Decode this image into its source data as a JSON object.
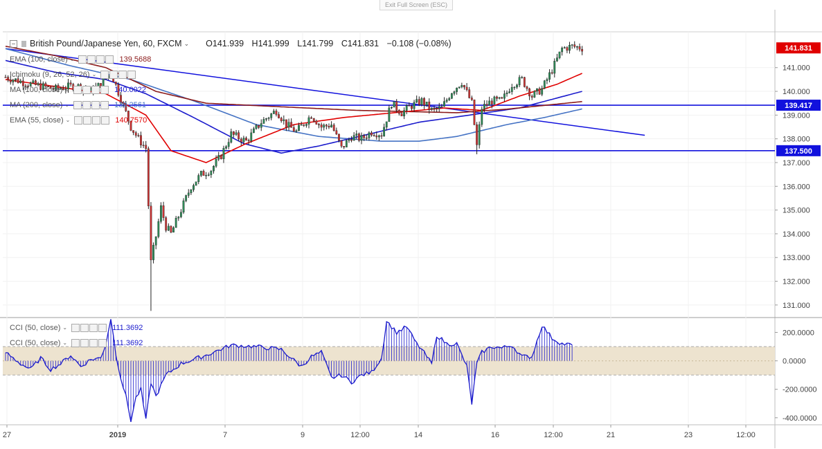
{
  "toolbar": {
    "exit_fullscreen": "Exit Full Screen (ESC)"
  },
  "symbol": {
    "name": "British Pound/Japanese Yen, 60, FXCM",
    "open": "O141.939",
    "high": "H141.999",
    "low": "L141.799",
    "close": "C141.831",
    "change": "−0.108 (−0.08%)"
  },
  "indicators": [
    {
      "label": "EMA (100, close)",
      "value": "139.5688",
      "color": "#8b1a1a"
    },
    {
      "label": "Ichimoku (9, 26, 52, 26)",
      "value": "",
      "color": "#2962ff"
    },
    {
      "label": "MA (100, close)",
      "value": "140.0022",
      "color": "#1a1acc"
    },
    {
      "label": "MA (200, close)",
      "value": "139.2561",
      "color": "#4472c4"
    },
    {
      "label": "EMA (55, close)",
      "value": "140.7570",
      "color": "#e00000"
    }
  ],
  "oscillators": [
    {
      "label": "CCI (50, close)",
      "value": "111.3692",
      "color": "#1a1acc"
    },
    {
      "label": "CCI (50, close)",
      "value": "111.3692",
      "color": "#1a1acc"
    }
  ],
  "colors": {
    "up": "#2e8b57",
    "down": "#cc3333",
    "ema100": "#8b1a1a",
    "ma100": "#1a1acc",
    "ma200": "#4472c4",
    "ema55": "#e00000",
    "hline": "#1111dd",
    "cci": "#1a1acc",
    "band": "#ede3cf",
    "last_tag": "#e00000"
  },
  "chart_data": {
    "type": "candlestick",
    "instrument": "GBP/JPY",
    "timeframe": "60",
    "x_ticks": [
      "27",
      "2019",
      "7",
      "9",
      "12:00",
      "14",
      "16",
      "12:00",
      "21",
      "23",
      "12:00"
    ],
    "y_ticks": [
      "141.000",
      "140.000",
      "139.000",
      "138.000",
      "137.000",
      "136.000",
      "135.000",
      "134.000",
      "133.000",
      "132.000",
      "131.000"
    ],
    "y_range": [
      130.5,
      142.1
    ],
    "price_tags": [
      {
        "value": "141.831",
        "role": "last"
      },
      {
        "value": "139.417",
        "role": "level"
      },
      {
        "value": "137.500",
        "role": "level"
      }
    ],
    "horizontal_levels": [
      139.417,
      137.5
    ],
    "trendline": {
      "from_index": 0,
      "from_value": 141.8,
      "to_index": 255,
      "to_value": 138.15
    },
    "price_path": [
      [
        0,
        140.6
      ],
      [
        10,
        140.3
      ],
      [
        20,
        140.1
      ],
      [
        28,
        140.25
      ],
      [
        34,
        140.0
      ],
      [
        38,
        140.3
      ],
      [
        42,
        140.8
      ],
      [
        46,
        139.7
      ],
      [
        50,
        138.5
      ],
      [
        53,
        138.0
      ],
      [
        56,
        137.6
      ],
      [
        58,
        132.8
      ],
      [
        60,
        133.9
      ],
      [
        62,
        135.1
      ],
      [
        64,
        134.3
      ],
      [
        66,
        134.0
      ],
      [
        70,
        135.0
      ],
      [
        74,
        136.0
      ],
      [
        78,
        136.5
      ],
      [
        82,
        136.7
      ],
      [
        86,
        137.3
      ],
      [
        90,
        138.2
      ],
      [
        96,
        137.9
      ],
      [
        102,
        138.7
      ],
      [
        108,
        139.2
      ],
      [
        112,
        138.6
      ],
      [
        116,
        138.3
      ],
      [
        122,
        139.0
      ],
      [
        126,
        138.5
      ],
      [
        130,
        138.6
      ],
      [
        134,
        137.6
      ],
      [
        138,
        138.1
      ],
      [
        142,
        138.0
      ],
      [
        146,
        138.3
      ],
      [
        150,
        138.2
      ],
      [
        154,
        139.5
      ],
      [
        158,
        139.1
      ],
      [
        162,
        139.4
      ],
      [
        166,
        139.6
      ],
      [
        170,
        139.2
      ],
      [
        174,
        139.3
      ],
      [
        178,
        140.0
      ],
      [
        182,
        140.4
      ],
      [
        186,
        139.5
      ],
      [
        188,
        137.7
      ],
      [
        190,
        139.3
      ],
      [
        194,
        139.6
      ],
      [
        198,
        139.6
      ],
      [
        202,
        140.3
      ],
      [
        206,
        140.5
      ],
      [
        210,
        139.8
      ],
      [
        214,
        140.1
      ],
      [
        218,
        140.9
      ],
      [
        222,
        141.8
      ],
      [
        226,
        141.9
      ],
      [
        230,
        141.83
      ]
    ],
    "ema55": [
      [
        0,
        140.5
      ],
      [
        20,
        140.2
      ],
      [
        40,
        139.9
      ],
      [
        56,
        139.0
      ],
      [
        66,
        137.5
      ],
      [
        80,
        137.0
      ],
      [
        96,
        137.8
      ],
      [
        115,
        138.6
      ],
      [
        135,
        138.9
      ],
      [
        155,
        139.1
      ],
      [
        175,
        139.3
      ],
      [
        190,
        139.2
      ],
      [
        205,
        139.8
      ],
      [
        220,
        140.3
      ],
      [
        230,
        140.76
      ]
    ],
    "ema100": [
      [
        0,
        141.9
      ],
      [
        20,
        141.5
      ],
      [
        40,
        141.0
      ],
      [
        60,
        140.0
      ],
      [
        80,
        139.5
      ],
      [
        100,
        139.4
      ],
      [
        120,
        139.3
      ],
      [
        140,
        139.2
      ],
      [
        160,
        139.15
      ],
      [
        180,
        139.1
      ],
      [
        200,
        139.25
      ],
      [
        230,
        139.57
      ]
    ],
    "ma100": [
      [
        0,
        141.3
      ],
      [
        20,
        140.8
      ],
      [
        40,
        140.5
      ],
      [
        56,
        139.9
      ],
      [
        75,
        138.9
      ],
      [
        95,
        137.8
      ],
      [
        110,
        137.4
      ],
      [
        125,
        137.7
      ],
      [
        145,
        138.2
      ],
      [
        165,
        138.7
      ],
      [
        185,
        139.0
      ],
      [
        205,
        139.3
      ],
      [
        230,
        140.0
      ]
    ],
    "ma200": [
      [
        0,
        141.8
      ],
      [
        25,
        141.1
      ],
      [
        50,
        140.5
      ],
      [
        75,
        139.6
      ],
      [
        100,
        138.6
      ],
      [
        125,
        138.1
      ],
      [
        150,
        137.9
      ],
      [
        165,
        137.9
      ],
      [
        180,
        138.1
      ],
      [
        200,
        138.6
      ],
      [
        215,
        138.9
      ],
      [
        230,
        139.26
      ]
    ],
    "cci": {
      "y_ticks": [
        "200.0000",
        "0.0000",
        "-200.0000",
        "-400.0000"
      ],
      "range": [
        -430,
        280
      ],
      "band": [
        -100,
        100
      ],
      "values": [
        [
          0,
          60
        ],
        [
          6,
          -20
        ],
        [
          10,
          -60
        ],
        [
          14,
          20
        ],
        [
          18,
          -60
        ],
        [
          22,
          -20
        ],
        [
          26,
          40
        ],
        [
          30,
          -40
        ],
        [
          34,
          10
        ],
        [
          38,
          20
        ],
        [
          40,
          120
        ],
        [
          42,
          300
        ],
        [
          44,
          50
        ],
        [
          46,
          -120
        ],
        [
          48,
          -250
        ],
        [
          50,
          -420
        ],
        [
          52,
          -260
        ],
        [
          54,
          -200
        ],
        [
          56,
          -420
        ],
        [
          58,
          -150
        ],
        [
          60,
          -250
        ],
        [
          64,
          -100
        ],
        [
          70,
          -20
        ],
        [
          80,
          40
        ],
        [
          90,
          110
        ],
        [
          100,
          100
        ],
        [
          110,
          80
        ],
        [
          114,
          20
        ],
        [
          118,
          -40
        ],
        [
          122,
          30
        ],
        [
          126,
          60
        ],
        [
          130,
          -120
        ],
        [
          134,
          -100
        ],
        [
          138,
          -150
        ],
        [
          142,
          -100
        ],
        [
          146,
          -80
        ],
        [
          150,
          20
        ],
        [
          152,
          280
        ],
        [
          156,
          200
        ],
        [
          160,
          240
        ],
        [
          164,
          120
        ],
        [
          166,
          80
        ],
        [
          170,
          -20
        ],
        [
          172,
          180
        ],
        [
          176,
          120
        ],
        [
          180,
          120
        ],
        [
          184,
          -40
        ],
        [
          186,
          -300
        ],
        [
          188,
          -20
        ],
        [
          190,
          60
        ],
        [
          194,
          100
        ],
        [
          198,
          90
        ],
        [
          202,
          110
        ],
        [
          206,
          30
        ],
        [
          210,
          30
        ],
        [
          214,
          250
        ],
        [
          218,
          160
        ],
        [
          222,
          120
        ],
        [
          226,
          111
        ]
      ]
    }
  }
}
